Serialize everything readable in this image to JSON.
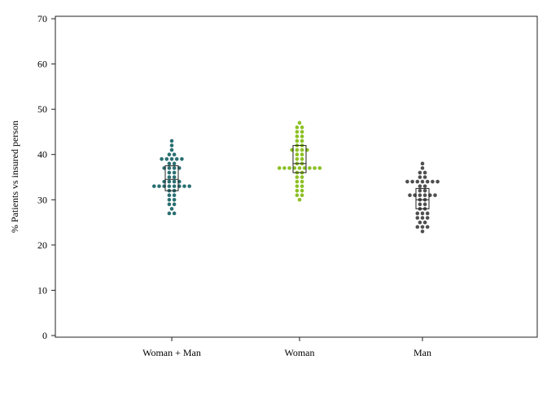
{
  "chart_data": {
    "type": "scatter",
    "subtype": "dot-strip with box",
    "title": "",
    "xlabel": "",
    "ylabel": "% Patients vs insured person",
    "ylim": [
      0,
      70
    ],
    "yticks": [
      0,
      10,
      20,
      30,
      40,
      50,
      60,
      70
    ],
    "grid": false,
    "legend": "none",
    "categories": [
      "Woman + Man",
      "Woman",
      "Man"
    ],
    "series": [
      {
        "category": "Woman + Man",
        "color": "#2a6f72",
        "box": {
          "q1": 32,
          "median": 34.5,
          "q3": 37.5
        },
        "points": [
          43,
          42,
          41,
          40,
          40,
          39,
          39,
          39,
          39,
          39,
          38,
          38,
          37,
          37,
          37,
          37,
          36,
          36,
          35,
          35,
          34,
          34,
          34,
          34,
          33,
          33,
          33,
          33,
          33,
          33,
          33,
          33,
          32,
          32,
          31,
          31,
          30,
          30,
          29,
          29,
          28,
          27,
          27
        ]
      },
      {
        "category": "Woman",
        "color": "#8cc024",
        "box": {
          "q1": 36,
          "median": 38,
          "q3": 42
        },
        "points": [
          47,
          46,
          46,
          45,
          45,
          44,
          44,
          43,
          43,
          42,
          42,
          41,
          41,
          41,
          41,
          40,
          40,
          39,
          39,
          38,
          38,
          37,
          37,
          37,
          37,
          37,
          37,
          37,
          37,
          37,
          36,
          36,
          35,
          35,
          34,
          34,
          33,
          33,
          32,
          32,
          31,
          31,
          30
        ]
      },
      {
        "category": "Man",
        "color": "#4f4f4f",
        "box": {
          "q1": 28,
          "median": 30,
          "q3": 32.5
        },
        "points": [
          38,
          37,
          36,
          36,
          35,
          35,
          34,
          34,
          34,
          34,
          34,
          34,
          34,
          33,
          33,
          32,
          32,
          31,
          31,
          31,
          31,
          31,
          31,
          30,
          30,
          29,
          29,
          28,
          28,
          27,
          27,
          27,
          26,
          26,
          26,
          25,
          25,
          24,
          24,
          24,
          23
        ]
      }
    ]
  }
}
